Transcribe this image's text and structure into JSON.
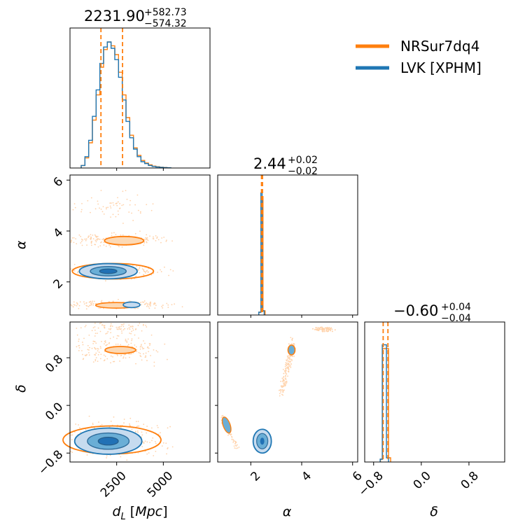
{
  "legend": {
    "entries": [
      {
        "label": "NRSur7dq4",
        "color": "#ff7f0e"
      },
      {
        "label": "LVK [XPHM]",
        "color": "#1f77b4"
      }
    ]
  },
  "colors": {
    "nrsur": "#ff7f0e",
    "lvk": "#1f77b4",
    "lvk_fill": "#c6dbef",
    "lvk_fill_mid": "#6aaed6",
    "lvk_fill_core": "#2171b5"
  },
  "titles": {
    "dl": {
      "main": "2231.90",
      "plus": "+582.73",
      "minus": "−574.32"
    },
    "alpha": {
      "main": "2.44",
      "plus": "+0.02",
      "minus": "−0.02"
    },
    "delta": {
      "main": "−0.60",
      "plus": "+0.04",
      "minus": "−0.04"
    }
  },
  "axes": {
    "dl_label": "d_L [Mpc]",
    "alpha_label": "α",
    "delta_label": "δ",
    "dl_ticks": [
      "2500",
      "5000"
    ],
    "alpha_ticks": [
      "2",
      "4",
      "6"
    ],
    "delta_ticks": [
      "−0.8",
      "0.0",
      "0.8"
    ],
    "alpha_ylabel": "α",
    "delta_ylabel": "δ"
  },
  "chart_data": {
    "type": "corner",
    "parameters": [
      "d_L [Mpc]",
      "α",
      "δ"
    ],
    "ranges": {
      "dl": [
        0,
        7500
      ],
      "alpha": [
        0.7,
        6.2
      ],
      "delta": [
        -0.95,
        1.4
      ]
    },
    "quantiles": {
      "dl": {
        "median": 2231.9,
        "plus": 582.73,
        "minus": 574.32,
        "lo": 1657.58,
        "hi": 2814.63
      },
      "alpha": {
        "median": 2.44,
        "plus": 0.02,
        "minus": 0.02,
        "lo": 2.42,
        "hi": 2.46
      },
      "delta": {
        "median": -0.6,
        "plus": 0.04,
        "minus": 0.04,
        "lo": -0.64,
        "hi": -0.56
      }
    },
    "dl_hist": {
      "bins": [
        600,
        800,
        1000,
        1200,
        1400,
        1600,
        1800,
        2000,
        2200,
        2400,
        2600,
        2800,
        3000,
        3200,
        3400,
        3600,
        3800,
        4000,
        4200,
        4400,
        4600,
        4800,
        5000,
        5200
      ],
      "nrsur": [
        0.02,
        0.08,
        0.2,
        0.38,
        0.58,
        0.8,
        0.94,
        1.0,
        0.97,
        0.9,
        0.76,
        0.58,
        0.4,
        0.26,
        0.16,
        0.1,
        0.06,
        0.04,
        0.025,
        0.015,
        0.01,
        0.006,
        0.004,
        0.002
      ],
      "lvk": [
        0.02,
        0.09,
        0.22,
        0.41,
        0.62,
        0.83,
        0.96,
        1.0,
        0.95,
        0.86,
        0.72,
        0.54,
        0.37,
        0.24,
        0.15,
        0.09,
        0.05,
        0.035,
        0.02,
        0.012,
        0.008,
        0.005,
        0.003,
        0.002
      ]
    },
    "alpha_hist": {
      "nrsur_peak": 2.44,
      "lvk_peak": 2.42,
      "width": 0.08
    },
    "delta_hist": {
      "nrsur_peak": -0.6,
      "lvk_peak": -0.62,
      "width": 0.1
    },
    "modes": {
      "alpha_vs_dl": [
        {
          "alpha": 2.4,
          "dl": 2100,
          "series": "both"
        },
        {
          "alpha": 3.65,
          "dl": 2300,
          "series": "NRSur7dq4"
        },
        {
          "alpha": 1.1,
          "dl": 2400,
          "series": "both"
        }
      ],
      "delta_vs_dl": [
        {
          "delta": -0.6,
          "dl": 2100,
          "series": "both"
        },
        {
          "delta": 0.93,
          "dl": 2300,
          "series": "NRSur7dq4"
        }
      ],
      "delta_vs_alpha": [
        {
          "alpha": 2.45,
          "delta": -0.6,
          "series": "both"
        },
        {
          "alpha": 1.05,
          "delta": -0.3,
          "series": "both"
        },
        {
          "alpha": 3.6,
          "delta": 0.93,
          "series": "both"
        }
      ]
    }
  }
}
